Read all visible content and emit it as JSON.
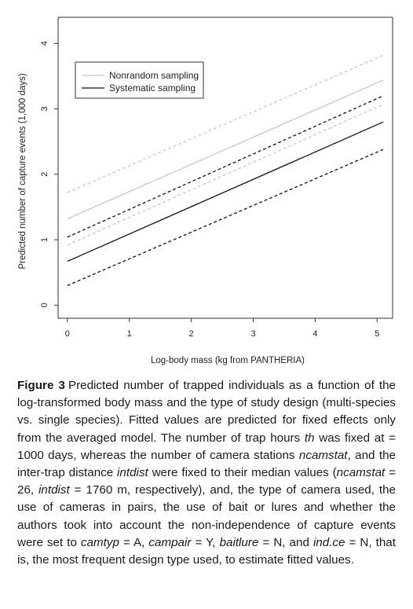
{
  "chart_data": {
    "type": "line",
    "xlabel": "Log-body mass (kg from PANTHERIA)",
    "ylabel": "Predicted number of capture events (1,000 days)",
    "xlim": [
      -0.15,
      5.25
    ],
    "ylim": [
      -0.2,
      4.4
    ],
    "xticks": [
      0,
      1,
      2,
      3,
      4,
      5
    ],
    "yticks": [
      0,
      1,
      2,
      3,
      4
    ],
    "grid": false,
    "legend_position": "top-left",
    "x_range": [
      0,
      5.1
    ],
    "series": [
      {
        "name": "Nonrandom sampling",
        "color": "#c8c8c8",
        "fit": [
          1.32,
          3.44
        ],
        "ci_upper": [
          1.72,
          3.82
        ],
        "ci_lower": [
          0.92,
          3.07
        ]
      },
      {
        "name": "Systematic sampling",
        "color": "#111111",
        "fit": [
          0.67,
          2.8
        ],
        "ci_upper": [
          1.04,
          3.2
        ],
        "ci_lower": [
          0.3,
          2.38
        ]
      }
    ]
  },
  "caption": {
    "label": "Figure 3",
    "parts": [
      {
        "t": "Predicted number of trapped individuals as a function of the log-transformed body mass and the type of study design (multi-species vs. single species). Fitted values are predicted for fixed effects only from the averaged model. The number of trap hours "
      },
      {
        "t": "th",
        "i": true
      },
      {
        "t": " was fixed at = 1000 days, whereas the number of camera stations "
      },
      {
        "t": "ncamstat",
        "i": true
      },
      {
        "t": ", and the inter-trap distance "
      },
      {
        "t": "intdist",
        "i": true
      },
      {
        "t": " were fixed to their median values ("
      },
      {
        "t": "ncamstat",
        "i": true
      },
      {
        "t": " = 26, "
      },
      {
        "t": "intdist",
        "i": true
      },
      {
        "t": " = 1760 m, respectively), and, the type of camera used, the use of cameras in pairs, the use of bait or lures and whether the authors took into account the non-independence of capture events were set to "
      },
      {
        "t": "camtyp",
        "i": true
      },
      {
        "t": " = A, "
      },
      {
        "t": "campair",
        "i": true
      },
      {
        "t": " = Y, "
      },
      {
        "t": "baitlure",
        "i": true
      },
      {
        "t": " = N, and "
      },
      {
        "t": "ind.ce",
        "i": true
      },
      {
        "t": " = N, that is, the most frequent design type used, to estimate fitted values."
      }
    ]
  }
}
